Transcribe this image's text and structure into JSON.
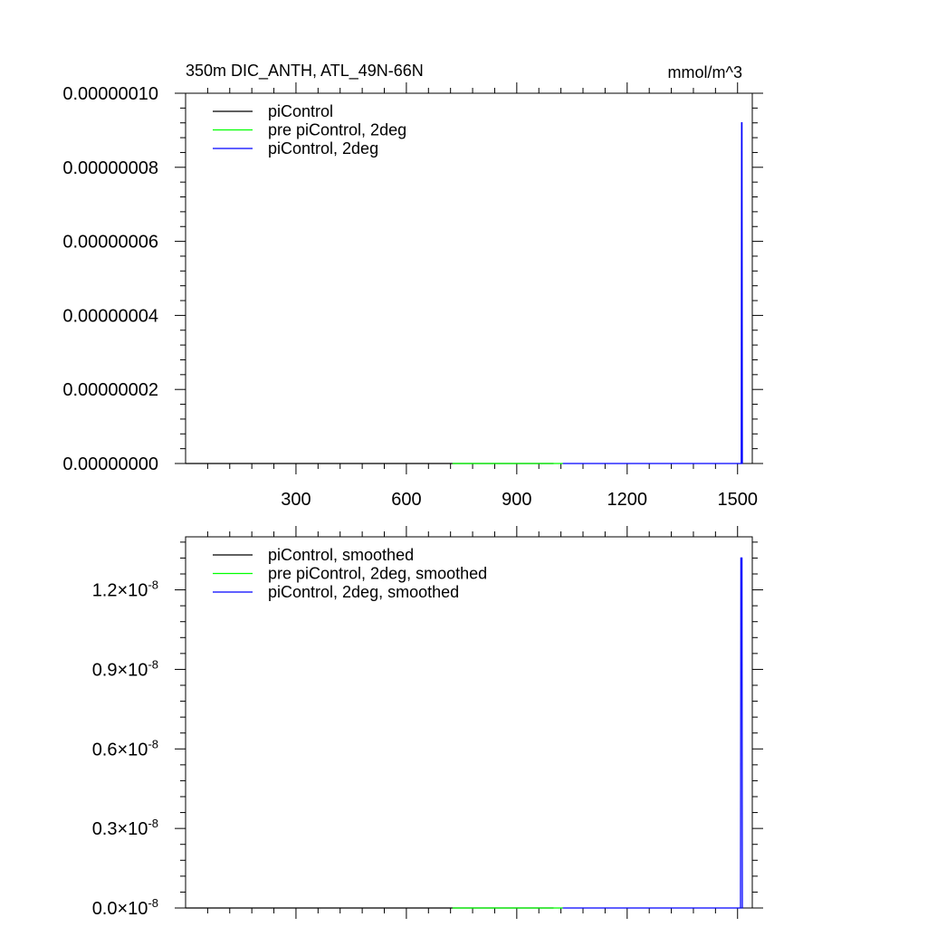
{
  "chart_data": [
    {
      "type": "line",
      "title": "350m DIC_ANTH, ATL_49N-66N",
      "units": "mmol/m^3",
      "xlim": [
        0,
        1540
      ],
      "ylim": [
        0,
        1e-07
      ],
      "x_ticks": [
        300,
        600,
        900,
        1200,
        1500
      ],
      "x_tick_labels": [
        "300",
        "600",
        "900",
        "1200",
        "1500"
      ],
      "y_ticks": [
        0,
        2e-08,
        4e-08,
        6e-08,
        8e-08,
        1e-07
      ],
      "y_tick_labels": [
        "0.00000000",
        "0.00000002",
        "0.00000004",
        "0.00000006",
        "0.00000008",
        "0.00000010"
      ],
      "legend_position": "top-left",
      "series": [
        {
          "name": "piControl",
          "color": "#000000",
          "x": [
            0,
            1000
          ],
          "y": [
            0,
            0
          ]
        },
        {
          "name": "pre piControl, 2deg",
          "color": "#00ff00",
          "x": [
            725,
            1025
          ],
          "y": [
            0,
            0
          ]
        },
        {
          "name": "piControl, 2deg",
          "color": "#0000ff",
          "x": [
            1025,
            1510,
            1511,
            1512,
            1513,
            1514
          ],
          "y": [
            0,
            0,
            9.2e-08,
            9.2e-08,
            0,
            0
          ]
        }
      ]
    },
    {
      "type": "line",
      "xlim": [
        0,
        1540
      ],
      "ylim": [
        0,
        1.4e-08
      ],
      "x_ticks": [
        300,
        600,
        900,
        1200,
        1500
      ],
      "y_ticks": [
        0,
        3e-09,
        6e-09,
        9e-09,
        1.2e-08
      ],
      "y_tick_labels": [
        {
          "mant": "0.0",
          "exp": "-8"
        },
        {
          "mant": "0.3",
          "exp": "-8"
        },
        {
          "mant": "0.6",
          "exp": "-8"
        },
        {
          "mant": "0.9",
          "exp": "-8"
        },
        {
          "mant": "1.2",
          "exp": "-8"
        }
      ],
      "legend_position": "top-left",
      "series": [
        {
          "name": "piControl, smoothed",
          "color": "#000000",
          "x": [
            0,
            1000
          ],
          "y": [
            0,
            0
          ]
        },
        {
          "name": "pre piControl, 2deg, smoothed",
          "color": "#00ff00",
          "x": [
            725,
            1025
          ],
          "y": [
            0,
            0
          ]
        },
        {
          "name": "piControl, 2deg, smoothed",
          "color": "#0000ff",
          "x": [
            1025,
            1508,
            1509,
            1512,
            1513,
            1514
          ],
          "y": [
            0,
            0,
            1.32e-08,
            1.32e-08,
            0,
            0
          ]
        }
      ]
    }
  ]
}
